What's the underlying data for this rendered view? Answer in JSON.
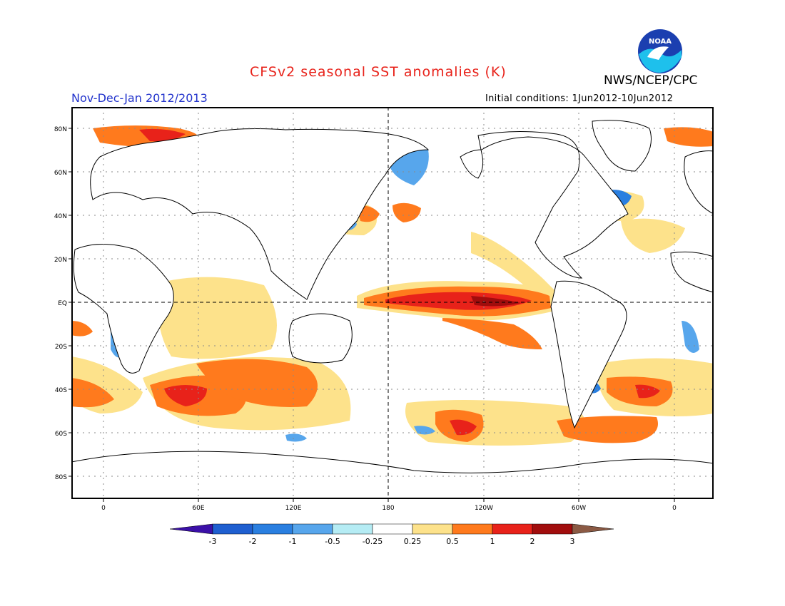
{
  "title": "CFSv2 seasonal SST anomalies (K)",
  "brand": "NWS/NCEP/CPC",
  "logo_text": "NOAA",
  "period": "Nov-Dec-Jan 2012/2013",
  "initial_conditions": "Initial conditions: 1Jun2012-10Jun2012",
  "lat_labels": [
    "80N",
    "60N",
    "40N",
    "20N",
    "EQ",
    "20S",
    "40S",
    "60S",
    "80S"
  ],
  "lon_labels": [
    "0",
    "60E",
    "120E",
    "180",
    "120W",
    "60W",
    "0"
  ],
  "colorbar": {
    "labels": [
      "-3",
      "-2",
      "-1",
      "-0.5",
      "-0.25",
      "0.25",
      "0.5",
      "1",
      "2",
      "3"
    ],
    "colors": [
      "#3b10a8",
      "#1f5fd0",
      "#2a7fe0",
      "#57a6ec",
      "#b5ecf4",
      "#ffffff",
      "#fde28b",
      "#ff7a1d",
      "#e8221a",
      "#a10d0d",
      "#8b5a44"
    ]
  }
}
